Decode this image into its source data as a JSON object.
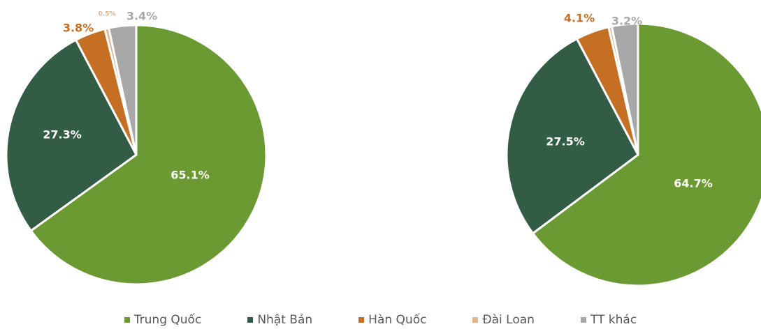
{
  "colors": [
    "#6a9a31",
    "#335c46",
    "#c46f24",
    "#e0b48e",
    "#a9a8a8"
  ],
  "legend": {
    "items": [
      {
        "label": "Trung Quốc",
        "color": "#6a9a31"
      },
      {
        "label": "Nhật Bản",
        "color": "#335c46"
      },
      {
        "label": "Hàn Quốc",
        "color": "#c46f24"
      },
      {
        "label": "Đài Loan",
        "color": "#e0b48e"
      },
      {
        "label": "TT khác",
        "color": "#a9a8a8"
      }
    ],
    "placement": "bottom"
  },
  "chart_data": [
    {
      "type": "pie",
      "categories": [
        "Trung Quốc",
        "Nhật Bản",
        "Hàn Quốc",
        "Đài Loan",
        "TT khác"
      ],
      "values": [
        65.1,
        27.3,
        3.8,
        0.5,
        3.4
      ],
      "labels": [
        "65.1%",
        "27.3%",
        "3.8%",
        "0.5%",
        "3.4%"
      ]
    },
    {
      "type": "pie",
      "categories": [
        "Trung Quốc",
        "Nhật Bản",
        "Hàn Quốc",
        "Đài Loan",
        "TT khác"
      ],
      "values": [
        64.7,
        27.5,
        4.1,
        0.4,
        3.2
      ],
      "labels": [
        "64.7%",
        "27.5%",
        "4.1%",
        "",
        "3.2%"
      ]
    }
  ]
}
